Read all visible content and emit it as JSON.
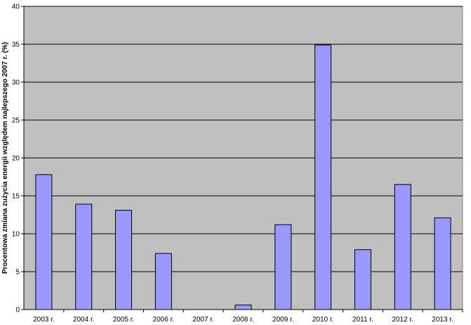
{
  "chart_data": {
    "type": "bar",
    "title": "",
    "xlabel": "",
    "ylabel": "Procentowa zmiana zużycia energii względem najlepszego 2007 r. (%)",
    "categories": [
      "2003 r.",
      "2004 r.",
      "2005 r.",
      "2006 r.",
      "2007 r.",
      "2008 r.",
      "2009 r.",
      "2010 r.",
      "2011 r.",
      "2012 r.",
      "2013 r."
    ],
    "values": [
      17.8,
      13.9,
      13.1,
      7.4,
      0,
      0.6,
      11.2,
      34.9,
      7.9,
      16.5,
      12.1
    ],
    "ylim": [
      0,
      40
    ],
    "yticks": [
      0,
      5,
      10,
      15,
      20,
      25,
      30,
      35,
      40
    ],
    "grid": true,
    "legend": "none",
    "colors": {
      "plot_background": "#c0c0c0",
      "bar_fill": "#9999ff",
      "bar_stroke": "#000000",
      "grid": "#000000"
    }
  }
}
